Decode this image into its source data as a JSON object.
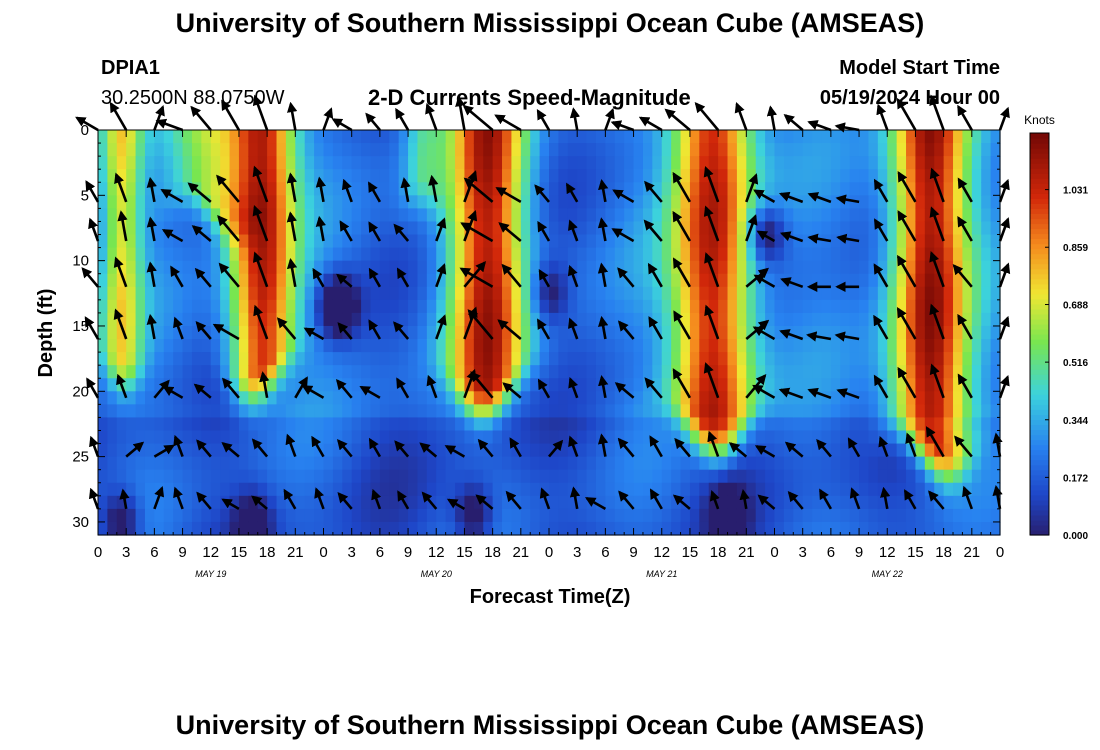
{
  "header": {
    "title": "University of Southern Mississippi Ocean Cube (AMSEAS)",
    "station_id": "DPIA1",
    "station_coords": "30.2500N  88.0750W",
    "chart_title": "2-D Currents Speed-Magnitude",
    "model_start_label": "Model Start Time",
    "model_start_value": "05/19/2024 Hour 00"
  },
  "footer": {
    "title": "University of Southern Mississippi Ocean Cube (AMSEAS)"
  },
  "chart_data": {
    "type": "heatmap",
    "title": "2-D Currents Speed-Magnitude",
    "xlabel": "Forecast Time(Z)",
    "ylabel": "Depth (ft)",
    "xlim": [
      0,
      96
    ],
    "ylim": [
      0,
      31
    ],
    "x_ticks": [
      0,
      3,
      6,
      9,
      12,
      15,
      18,
      21,
      24,
      27,
      30,
      33,
      36,
      39,
      42,
      45,
      48,
      51,
      54,
      57,
      60,
      63,
      66,
      69,
      72,
      75,
      78,
      81,
      84,
      87,
      90,
      93,
      96
    ],
    "x_tick_labels": [
      "0",
      "3",
      "6",
      "9",
      "12",
      "15",
      "18",
      "21",
      "0",
      "3",
      "6",
      "9",
      "12",
      "15",
      "18",
      "21",
      "0",
      "3",
      "6",
      "9",
      "12",
      "15",
      "18",
      "21",
      "0",
      "3",
      "6",
      "9",
      "12",
      "15",
      "18",
      "21",
      "0"
    ],
    "y_ticks": [
      0,
      5,
      10,
      15,
      20,
      25,
      30
    ],
    "y_tick_labels": [
      "0",
      "5",
      "10",
      "15",
      "20",
      "25",
      "30"
    ],
    "day_labels": [
      {
        "x": 12,
        "text": "MAY 19"
      },
      {
        "x": 36,
        "text": "MAY 20"
      },
      {
        "x": 60,
        "text": "MAY 21"
      },
      {
        "x": 84,
        "text": "MAY 22"
      }
    ],
    "colorbar": {
      "title": "Knots",
      "min": 0.0,
      "max": 1.2,
      "ticks": [
        0.0,
        0.172,
        0.344,
        0.516,
        0.688,
        0.859,
        1.031
      ],
      "tick_labels": [
        "0.000",
        "0.172",
        "0.344",
        "0.516",
        "0.688",
        "0.859",
        "1.031"
      ]
    },
    "high_speed_bands": [
      {
        "t_center": 2.5,
        "width": 1.5,
        "bottom_depth": 16,
        "peak": 0.68
      },
      {
        "t_center": 17.5,
        "width": 2.4,
        "bottom_depth": 17,
        "peak": 1.05
      },
      {
        "t_center": 12.0,
        "width": 3.0,
        "bottom_depth": 5,
        "peak": 0.7
      },
      {
        "t_center": 41.5,
        "width": 2.8,
        "bottom_depth": 18,
        "peak": 1.05
      },
      {
        "t_center": 34.5,
        "width": 1.5,
        "bottom_depth": 5,
        "peak": 0.45
      },
      {
        "t_center": 65.5,
        "width": 3.0,
        "bottom_depth": 21,
        "peak": 1.1
      },
      {
        "t_center": 88.5,
        "width": 2.8,
        "bottom_depth": 23,
        "peak": 1.15
      }
    ],
    "low_speed_spots": [
      {
        "t": 25.5,
        "depth": 13.5,
        "strength": 0.45
      },
      {
        "t": 2.5,
        "depth": 30,
        "strength": 0.3
      },
      {
        "t": 16.5,
        "depth": 30,
        "strength": 0.25
      },
      {
        "t": 40,
        "depth": 29.5,
        "strength": 0.3
      },
      {
        "t": 67,
        "depth": 29.5,
        "strength": 0.25
      },
      {
        "t": 71,
        "depth": 8,
        "strength": 0.35
      },
      {
        "t": 48,
        "depth": 12.5,
        "strength": 0.25
      }
    ],
    "vector_rows": [
      0,
      5.5,
      8.5,
      12,
      16,
      20.5,
      25,
      29
    ],
    "vector_spacing_hours": 3,
    "vector_directions_deg": [
      [
        300,
        330,
        20,
        290,
        320,
        330,
        340,
        350,
        20,
        300,
        320,
        330,
        340,
        350,
        310,
        300,
        330,
        350,
        20,
        290,
        300,
        310,
        320,
        340,
        350,
        310,
        290,
        280,
        340,
        330,
        340,
        330,
        20
      ],
      [
        330,
        340,
        350,
        300,
        310,
        320,
        340,
        350,
        350,
        340,
        330,
        350,
        350,
        20,
        310,
        300,
        320,
        330,
        350,
        300,
        320,
        330,
        340,
        20,
        300,
        290,
        290,
        280,
        330,
        330,
        340,
        330,
        20
      ],
      [
        340,
        350,
        350,
        300,
        310,
        320,
        340,
        350,
        350,
        330,
        330,
        320,
        20,
        20,
        300,
        310,
        330,
        340,
        350,
        300,
        320,
        330,
        340,
        20,
        300,
        290,
        280,
        280,
        330,
        330,
        340,
        330,
        20
      ],
      [
        320,
        340,
        350,
        330,
        320,
        320,
        340,
        350,
        330,
        310,
        330,
        330,
        20,
        40,
        300,
        320,
        330,
        340,
        350,
        320,
        330,
        330,
        340,
        50,
        300,
        290,
        270,
        270,
        330,
        330,
        340,
        320,
        20
      ],
      [
        330,
        340,
        350,
        340,
        320,
        300,
        340,
        320,
        300,
        320,
        330,
        320,
        20,
        20,
        320,
        310,
        330,
        340,
        350,
        320,
        330,
        330,
        340,
        50,
        300,
        290,
        280,
        280,
        330,
        330,
        340,
        330,
        20
      ],
      [
        330,
        340,
        40,
        300,
        310,
        320,
        350,
        30,
        300,
        320,
        300,
        330,
        340,
        20,
        320,
        310,
        330,
        340,
        350,
        310,
        320,
        330,
        340,
        40,
        300,
        290,
        290,
        290,
        330,
        330,
        340,
        330,
        20
      ],
      [
        340,
        50,
        60,
        340,
        320,
        310,
        320,
        340,
        330,
        320,
        330,
        320,
        310,
        300,
        320,
        330,
        40,
        340,
        350,
        320,
        330,
        320,
        340,
        310,
        300,
        310,
        320,
        330,
        340,
        340,
        330,
        320,
        350
      ],
      [
        340,
        350,
        20,
        340,
        320,
        300,
        310,
        330,
        340,
        320,
        340,
        330,
        320,
        300,
        310,
        320,
        340,
        350,
        300,
        320,
        330,
        310,
        340,
        350,
        310,
        320,
        330,
        340,
        350,
        330,
        320,
        340,
        350
      ]
    ]
  }
}
